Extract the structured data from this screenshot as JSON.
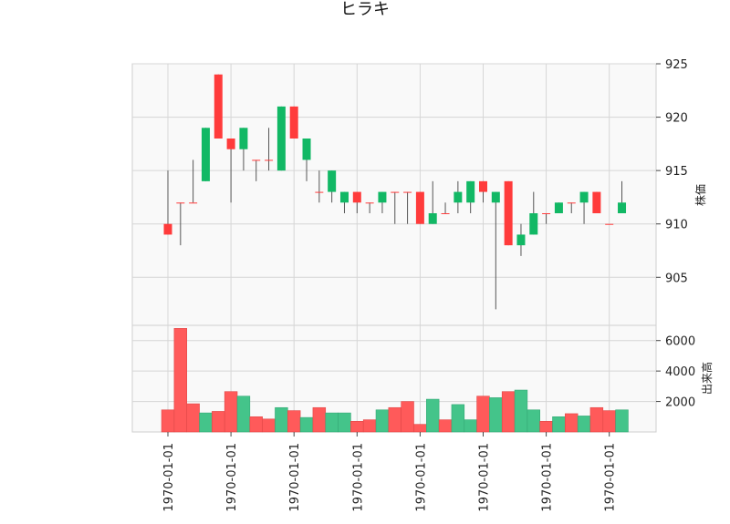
{
  "chart_data": {
    "type": "candlestick",
    "title": "ヒラキ",
    "price_axis": {
      "label": "株価",
      "ylim": [
        900.5,
        925
      ],
      "ticks": [
        905,
        910,
        915,
        920,
        925
      ]
    },
    "volume_axis": {
      "label": "出来高",
      "ylim": [
        0,
        7000
      ],
      "ticks": [
        2000,
        4000,
        6000
      ]
    },
    "x_tick_labels": [
      "1970-01-01",
      "1970-01-01",
      "1970-01-01",
      "1970-01-01",
      "1970-01-01",
      "1970-01-01",
      "1970-01-01",
      "1970-01-01"
    ],
    "x_tick_indices": [
      0,
      5,
      10,
      15,
      20,
      25,
      30,
      35
    ],
    "grid": true,
    "colors": {
      "up": "#ff3b3b",
      "down": "#12b865",
      "volume_up": "#ff5a5a",
      "volume_down": "#44c48a",
      "wick": "#555555",
      "panel_bg": "#f9f9f9",
      "grid": "#d6d6d6"
    },
    "ohlc": [
      {
        "o": 909,
        "h": 915,
        "l": 909,
        "c": 910
      },
      {
        "o": 912,
        "h": 912,
        "l": 908,
        "c": 912
      },
      {
        "o": 912,
        "h": 916,
        "l": 912,
        "c": 912
      },
      {
        "o": 919,
        "h": 919,
        "l": 914,
        "c": 914
      },
      {
        "o": 918,
        "h": 924,
        "l": 918,
        "c": 924
      },
      {
        "o": 917,
        "h": 918,
        "l": 912,
        "c": 918
      },
      {
        "o": 919,
        "h": 919,
        "l": 915,
        "c": 917
      },
      {
        "o": 916,
        "h": 916,
        "l": 914,
        "c": 916
      },
      {
        "o": 916,
        "h": 919,
        "l": 915,
        "c": 916
      },
      {
        "o": 921,
        "h": 921,
        "l": 915,
        "c": 915
      },
      {
        "o": 918,
        "h": 921,
        "l": 918,
        "c": 921
      },
      {
        "o": 918,
        "h": 918,
        "l": 914,
        "c": 916
      },
      {
        "o": 913,
        "h": 915,
        "l": 912,
        "c": 913
      },
      {
        "o": 915,
        "h": 915,
        "l": 912,
        "c": 913
      },
      {
        "o": 913,
        "h": 913,
        "l": 911,
        "c": 912
      },
      {
        "o": 912,
        "h": 913,
        "l": 911,
        "c": 913
      },
      {
        "o": 912,
        "h": 912,
        "l": 911,
        "c": 912
      },
      {
        "o": 913,
        "h": 913,
        "l": 911,
        "c": 912
      },
      {
        "o": 913,
        "h": 913,
        "l": 910,
        "c": 913
      },
      {
        "o": 913,
        "h": 913,
        "l": 910,
        "c": 913
      },
      {
        "o": 910,
        "h": 913,
        "l": 910,
        "c": 913
      },
      {
        "o": 911,
        "h": 914,
        "l": 910,
        "c": 910
      },
      {
        "o": 911,
        "h": 912,
        "l": 911,
        "c": 911
      },
      {
        "o": 913,
        "h": 914,
        "l": 911,
        "c": 912
      },
      {
        "o": 914,
        "h": 914,
        "l": 911,
        "c": 912
      },
      {
        "o": 913,
        "h": 914,
        "l": 912,
        "c": 914
      },
      {
        "o": 913,
        "h": 913,
        "l": 902,
        "c": 912
      },
      {
        "o": 908,
        "h": 914,
        "l": 908,
        "c": 914
      },
      {
        "o": 909,
        "h": 910,
        "l": 907,
        "c": 908
      },
      {
        "o": 911,
        "h": 913,
        "l": 909,
        "c": 909
      },
      {
        "o": 911,
        "h": 911,
        "l": 910,
        "c": 911
      },
      {
        "o": 912,
        "h": 912,
        "l": 911,
        "c": 911
      },
      {
        "o": 912,
        "h": 912,
        "l": 911,
        "c": 912
      },
      {
        "o": 913,
        "h": 913,
        "l": 910,
        "c": 912
      },
      {
        "o": 911,
        "h": 913,
        "l": 911,
        "c": 913
      },
      {
        "o": 910,
        "h": 910,
        "l": 910,
        "c": 910
      },
      {
        "o": 912,
        "h": 914,
        "l": 911,
        "c": 911
      }
    ],
    "volume": [
      1450,
      6800,
      1850,
      1250,
      1350,
      2650,
      2350,
      1000,
      850,
      1600,
      1400,
      950,
      1600,
      1250,
      1250,
      700,
      800,
      1450,
      1600,
      2000,
      500,
      2150,
      800,
      1800,
      800,
      2350,
      2250,
      2650,
      2750,
      1450,
      700,
      1000,
      1200,
      1050,
      1600,
      1400,
      1450
    ]
  }
}
